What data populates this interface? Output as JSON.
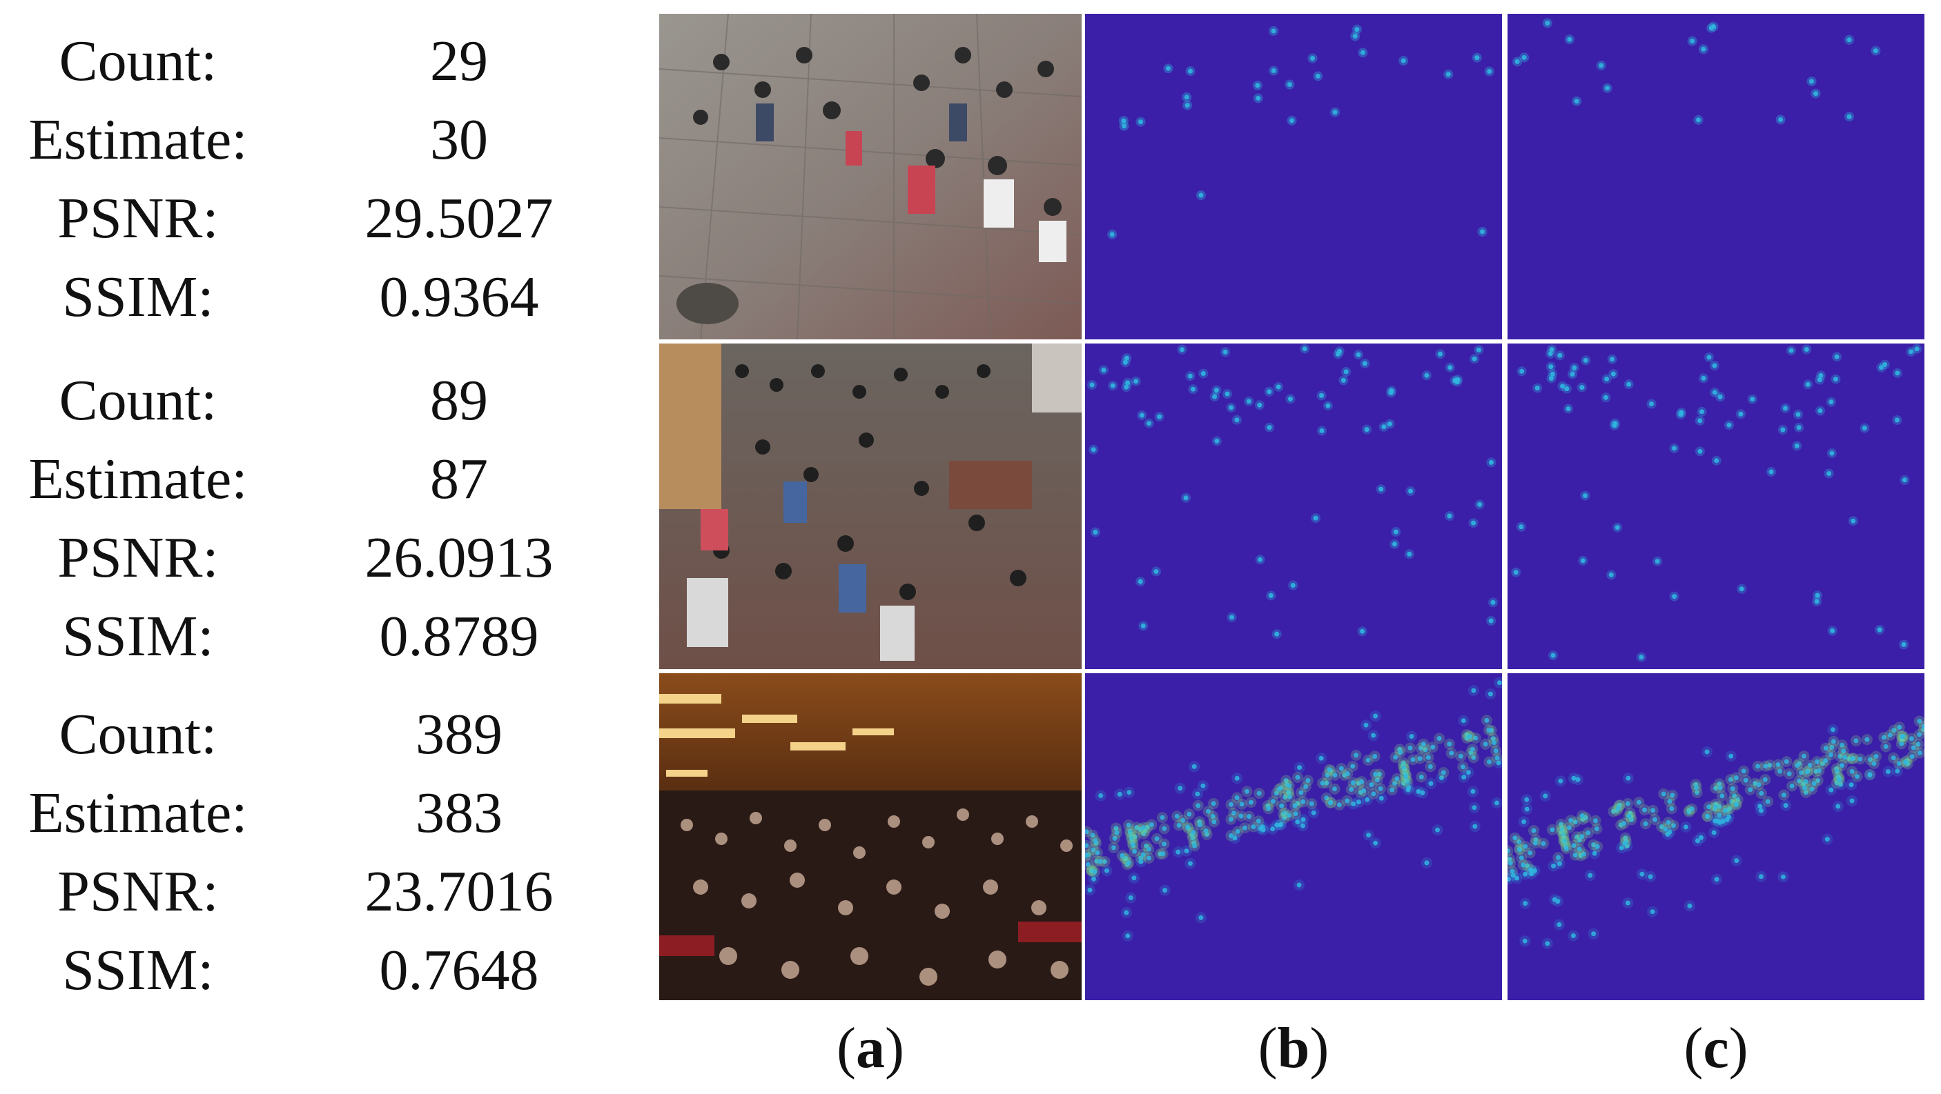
{
  "rows": [
    {
      "count_label": "Count:",
      "count": "29",
      "estimate_label": "Estimate:",
      "estimate": "30",
      "psnr_label": "PSNR:",
      "psnr": "29.5027",
      "ssim_label": "SSIM:",
      "ssim": "0.9364"
    },
    {
      "count_label": "Count:",
      "count": "89",
      "estimate_label": "Estimate:",
      "estimate": "87",
      "psnr_label": "PSNR:",
      "psnr": "26.0913",
      "ssim_label": "SSIM:",
      "ssim": "0.8789"
    },
    {
      "count_label": "Count:",
      "count": "389",
      "estimate_label": "Estimate:",
      "estimate": "383",
      "psnr_label": "PSNR:",
      "psnr": "23.7016",
      "ssim_label": "SSIM:",
      "ssim": "0.7648"
    }
  ],
  "columns": [
    {
      "open": "(",
      "letter": "a",
      "close": ")"
    },
    {
      "open": "(",
      "letter": "b",
      "close": ")"
    },
    {
      "open": "(",
      "letter": "c",
      "close": ")"
    }
  ],
  "colors": {
    "density_background": "#3b1fa8",
    "density_low": "#2fb6e0",
    "density_high": "#7fe07a"
  }
}
